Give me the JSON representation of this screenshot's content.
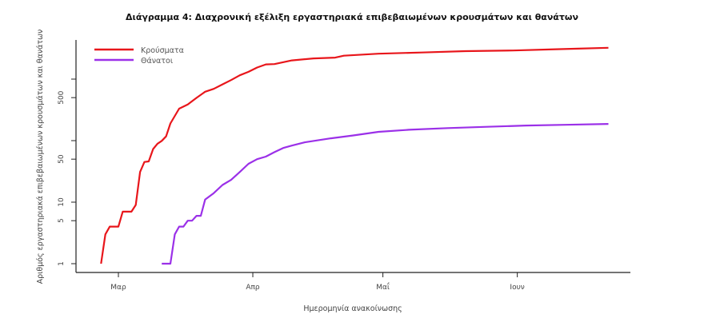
{
  "chart_data": {
    "type": "line",
    "title": "Διάγραμμα 4: Διαχρονική εξέλιξη εργαστηριακά επιβεβαιωμένων κρουσμάτων και θανάτων",
    "xlabel": "Ημερομηνία ανακοίνωσης",
    "ylabel": "Αριθμός εργαστηριακά επιβεβαιωμένων κρουσμάτων και θανάτων",
    "y_scale": "log",
    "ylim": [
      1,
      3500
    ],
    "xlim": [
      "2020-02-21",
      "2020-06-26"
    ],
    "y_ticks": [
      1,
      5,
      10,
      50,
      100,
      500,
      1000
    ],
    "y_tick_labels": [
      "1",
      "5",
      "10",
      "50",
      "",
      "500",
      ""
    ],
    "x_ticks": [
      "2020-03-01",
      "2020-04-01",
      "2020-05-01",
      "2020-06-01"
    ],
    "x_tick_labels": [
      "Μαρ",
      "Απρ",
      "Μαΐ",
      "Ιουν"
    ],
    "grid": false,
    "legend": "top-left",
    "series": [
      {
        "name": "Κρούσματα",
        "color": "#e8161b",
        "x": [
          "2020-02-26",
          "2020-02-27",
          "2020-02-28",
          "2020-03-01",
          "2020-03-02",
          "2020-03-04",
          "2020-03-05",
          "2020-03-06",
          "2020-03-07",
          "2020-03-08",
          "2020-03-09",
          "2020-03-10",
          "2020-03-11",
          "2020-03-12",
          "2020-03-13",
          "2020-03-15",
          "2020-03-17",
          "2020-03-19",
          "2020-03-21",
          "2020-03-23",
          "2020-03-25",
          "2020-03-27",
          "2020-03-29",
          "2020-03-31",
          "2020-04-02",
          "2020-04-04",
          "2020-04-06",
          "2020-04-10",
          "2020-04-15",
          "2020-04-20",
          "2020-04-22",
          "2020-04-30",
          "2020-05-10",
          "2020-05-20",
          "2020-05-31",
          "2020-06-10",
          "2020-06-15",
          "2020-06-22"
        ],
        "values": [
          1,
          3,
          4,
          4,
          7,
          7,
          9,
          31,
          45,
          46,
          73,
          89,
          99,
          117,
          190,
          331,
          387,
          495,
          624,
          695,
          821,
          966,
          1156,
          1314,
          1544,
          1735,
          1755,
          2011,
          2170,
          2235,
          2401,
          2591,
          2710,
          2850,
          2917,
          3058,
          3121,
          3227
        ]
      },
      {
        "name": "Θάνατοι",
        "color": "#9b30e8",
        "x": [
          "2020-03-11",
          "2020-03-13",
          "2020-03-14",
          "2020-03-15",
          "2020-03-16",
          "2020-03-17",
          "2020-03-18",
          "2020-03-19",
          "2020-03-20",
          "2020-03-21",
          "2020-03-23",
          "2020-03-25",
          "2020-03-27",
          "2020-03-29",
          "2020-03-31",
          "2020-04-02",
          "2020-04-04",
          "2020-04-06",
          "2020-04-08",
          "2020-04-10",
          "2020-04-13",
          "2020-04-19",
          "2020-04-24",
          "2020-04-30",
          "2020-05-07",
          "2020-05-16",
          "2020-05-25",
          "2020-06-03",
          "2020-06-12",
          "2020-06-22"
        ],
        "values": [
          1,
          1,
          3,
          4,
          4,
          5,
          5,
          6,
          6,
          11,
          14,
          19,
          23,
          31,
          42,
          50,
          55,
          65,
          76,
          83,
          94,
          109,
          121,
          139,
          150,
          160,
          168,
          176,
          181,
          187
        ]
      }
    ]
  }
}
